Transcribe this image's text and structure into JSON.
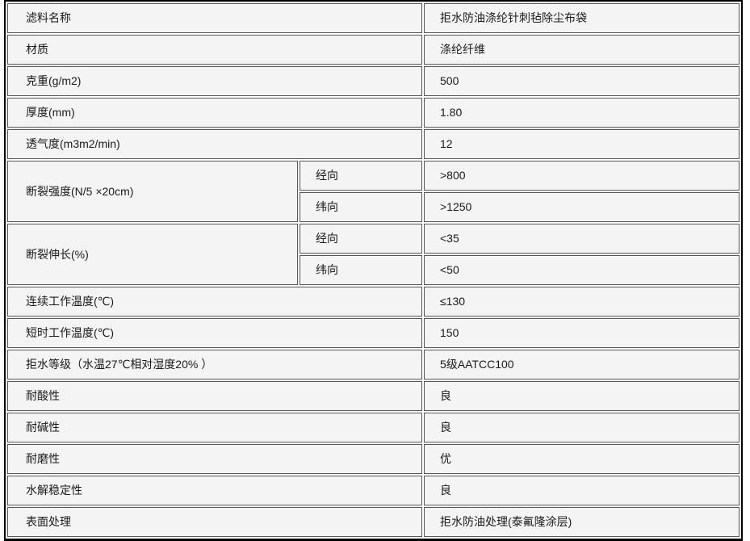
{
  "colors": {
    "outer_border": "#000000",
    "cell_border": "#565656",
    "cell_background": "#f4f4f5",
    "gap_background": "#ffffff",
    "text": "#1a1a1a"
  },
  "table": {
    "rows": [
      {
        "type": "simple",
        "label": "滤料名称",
        "value": "拒水防油涤纶针刺毡除尘布袋"
      },
      {
        "type": "simple",
        "label": "材质",
        "value": "涤纶纤维"
      },
      {
        "type": "simple",
        "label": "克重(g/m2)",
        "value": "500"
      },
      {
        "type": "simple",
        "label": "厚度(mm)",
        "value": "1.80"
      },
      {
        "type": "simple",
        "label": "透气度(m3m2/min)",
        "value": "12"
      },
      {
        "type": "group",
        "label": "断裂强度(N/5 ×20cm)",
        "subrows": [
          {
            "direction": "经向",
            "value": ">800"
          },
          {
            "direction": "纬向",
            "value": ">1250"
          }
        ]
      },
      {
        "type": "group",
        "label": "断裂伸长(%)",
        "subrows": [
          {
            "direction": "经向",
            "value": "<35"
          },
          {
            "direction": "纬向",
            "value": "<50"
          }
        ]
      },
      {
        "type": "simple",
        "label": "连续工作温度(℃)",
        "value": "≤130"
      },
      {
        "type": "simple",
        "label": "短时工作温度(℃)",
        "value": "150"
      },
      {
        "type": "simple",
        "label": "拒水等级（水温27℃相对湿度20% ）",
        "value": "5级AATCC100"
      },
      {
        "type": "simple",
        "label": "耐酸性",
        "value": "良"
      },
      {
        "type": "simple",
        "label": "耐碱性",
        "value": "良"
      },
      {
        "type": "simple",
        "label": "耐磨性",
        "value": "优"
      },
      {
        "type": "simple",
        "label": "水解稳定性",
        "value": "良"
      },
      {
        "type": "simple",
        "label": "表面处理",
        "value": "拒水防油处理(泰氟隆涂层)"
      }
    ]
  }
}
